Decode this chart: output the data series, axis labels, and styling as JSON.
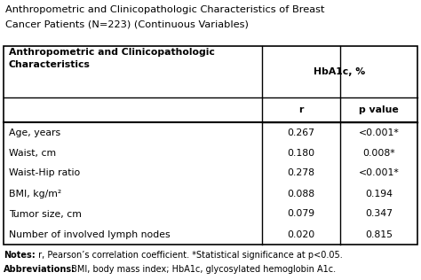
{
  "title_line1": "Anthropometric and Clinicopathologic Characteristics of Breast",
  "title_line2": "Cancer Patients (N=223) (Continuous Variables)",
  "col_header1_line1": "Anthropometric and Clinicopathologic",
  "col_header1_line2": "Characteristics",
  "col_header2": "HbA1c, %",
  "sub_header_r": "r",
  "sub_header_p": "p value",
  "rows": [
    {
      "label": "Age, years",
      "r": "0.267",
      "p": "<0.001*"
    },
    {
      "label": "Waist, cm",
      "r": "0.180",
      "p": "0.008*"
    },
    {
      "label": "Waist-Hip ratio",
      "r": "0.278",
      "p": "<0.001*"
    },
    {
      "label": "BMI, kg/m²",
      "r": "0.088",
      "p": "0.194"
    },
    {
      "label": "Tumor size, cm",
      "r": "0.079",
      "p": "0.347"
    },
    {
      "label": "Number of involved lymph nodes",
      "r": "0.020",
      "p": "0.815"
    }
  ],
  "notes_bold": "Notes:",
  "notes_rest": " r, Pearson’s correlation coefficient. *Statistical significance at p<0.05.",
  "abbrev_bold": "Abbreviations:",
  "abbrev_rest": " BMI, body mass index; HbA1c, glycosylated hemoglobin A1c.",
  "bg_color": "#ffffff",
  "border_color": "#000000",
  "text_color": "#000000",
  "font_size": 7.8,
  "notes_font_size": 7.0,
  "title_font_size": 8.2
}
